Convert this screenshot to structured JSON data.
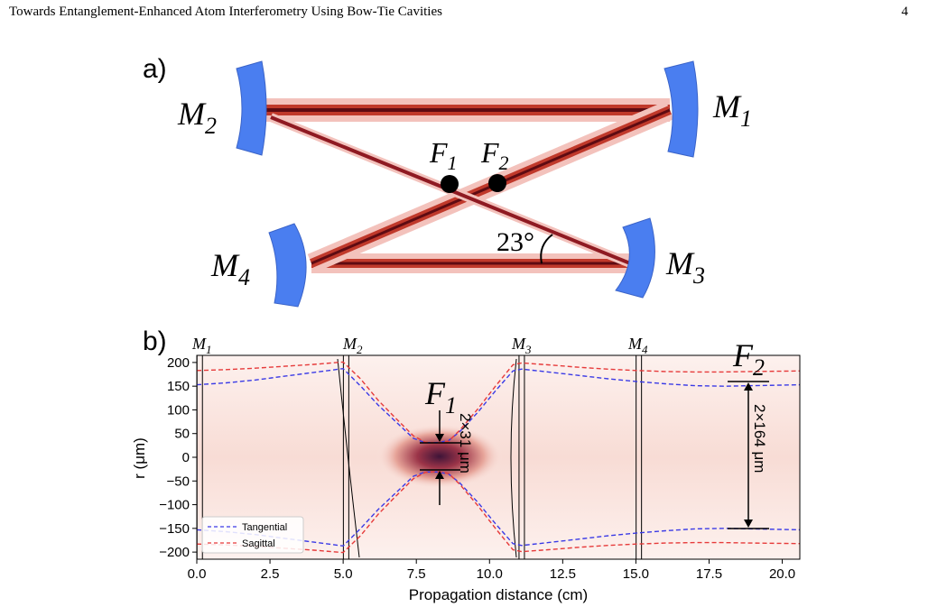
{
  "header": {
    "title": "Towards Entanglement-Enhanced Atom Interferometry Using Bow-Tie Cavities",
    "page_number": "4"
  },
  "panel_a": {
    "label": "a)",
    "mirrors": [
      {
        "name": "M",
        "sub": "2"
      },
      {
        "name": "M",
        "sub": "1"
      },
      {
        "name": "M",
        "sub": "4"
      },
      {
        "name": "M",
        "sub": "3"
      }
    ],
    "foci": [
      {
        "name": "F",
        "sub": "1"
      },
      {
        "name": "F",
        "sub": "2"
      }
    ],
    "angle_label": "23°",
    "colors": {
      "mirror": "#4a7ef0",
      "beam_core": "#6b0f16",
      "beam_edge": "#f3c2bc"
    }
  },
  "panel_b": {
    "label": "b)",
    "mirror_labels": [
      {
        "name": "M",
        "sub": "1"
      },
      {
        "name": "M",
        "sub": "2"
      },
      {
        "name": "M",
        "sub": "3"
      },
      {
        "name": "M",
        "sub": "4"
      }
    ],
    "focus_labels": [
      {
        "name": "F",
        "sub": "1"
      },
      {
        "name": "F",
        "sub": "2"
      }
    ],
    "annotation_f1": "2×31 μm",
    "annotation_f2": "2×164 μm"
  },
  "chart_data": {
    "type": "line",
    "xlabel": "Propagation distance (cm)",
    "ylabel": "r (μm)",
    "xlim": [
      0.0,
      20.6
    ],
    "ylim": [
      -215,
      215
    ],
    "xticks": [
      "0.0",
      "2.5",
      "5.0",
      "7.5",
      "10.0",
      "12.5",
      "15.0",
      "17.5",
      "20.0"
    ],
    "yticks": [
      "200",
      "150",
      "100",
      "50",
      "0",
      "−50",
      "−100",
      "−150",
      "−200"
    ],
    "legend_position": "bottom-left",
    "mirror_positions": [
      0.1,
      5.1,
      11.1,
      15.1
    ],
    "series": [
      {
        "name": "Tangential",
        "color": "#3a3ae6",
        "style": "dashed",
        "x": [
          0.0,
          1.0,
          2.0,
          3.0,
          4.0,
          5.0,
          5.6,
          6.2,
          6.8,
          7.4,
          7.8,
          8.2,
          8.6,
          9.0,
          9.6,
          10.2,
          10.8,
          11.1,
          12.0,
          13.0,
          14.0,
          15.0,
          16.0,
          17.0,
          18.0,
          19.0,
          20.6
        ],
        "y": [
          153,
          157,
          163,
          171,
          179,
          187,
          150,
          110,
          75,
          40,
          31,
          31,
          35,
          55,
          95,
          140,
          182,
          186,
          180,
          173,
          166,
          160,
          155,
          151,
          150,
          151,
          153
        ]
      },
      {
        "name": "Sagittal",
        "color": "#e63a3a",
        "style": "dashed",
        "x": [
          0.0,
          1.0,
          2.0,
          3.0,
          4.0,
          5.0,
          5.6,
          6.2,
          6.8,
          7.4,
          7.8,
          8.2,
          8.6,
          9.0,
          9.6,
          10.2,
          10.8,
          11.1,
          12.0,
          13.0,
          14.0,
          15.0,
          16.0,
          17.0,
          18.0,
          19.0,
          20.6
        ],
        "y": [
          183,
          185,
          188,
          192,
          196,
          201,
          165,
          120,
          82,
          45,
          32,
          30,
          34,
          58,
          102,
          150,
          195,
          199,
          195,
          190,
          186,
          183,
          181,
          180,
          180,
          181,
          182
        ]
      }
    ]
  }
}
